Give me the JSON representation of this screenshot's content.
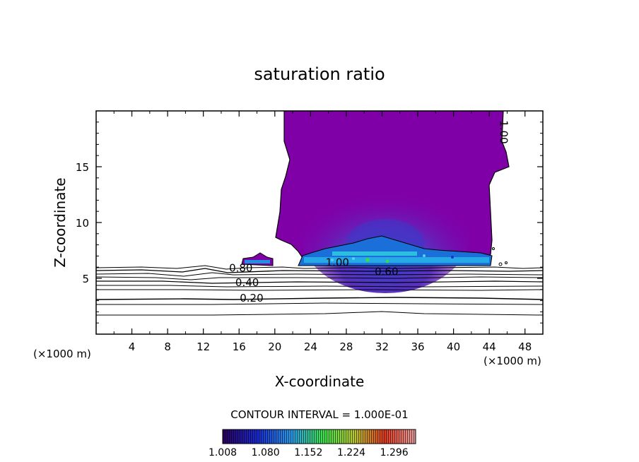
{
  "chart_data": {
    "type": "contour",
    "title": "saturation ratio",
    "xlabel": "X-coordinate",
    "ylabel": "Z-coordinate",
    "x_unit": "(×1000 m)",
    "y_unit": "(×1000 m)",
    "xlim": [
      0,
      50
    ],
    "ylim": [
      0,
      20
    ],
    "x_ticks": [
      4,
      8,
      12,
      16,
      20,
      24,
      28,
      32,
      36,
      40,
      44,
      48
    ],
    "y_ticks": [
      5,
      10,
      15
    ],
    "contour_interval": "CONTOUR INTERVAL = 1.000E-01",
    "contour_labels": [
      {
        "text": "0.80",
        "x": 16.2,
        "z": 5.6
      },
      {
        "text": "0.40",
        "x": 16.9,
        "z": 4.3
      },
      {
        "text": "0.20",
        "x": 17.4,
        "z": 2.9
      },
      {
        "text": "1.00",
        "x": 27.0,
        "z": 6.1
      },
      {
        "text": "0.60",
        "x": 32.5,
        "z": 5.3
      },
      {
        "text": "1.00",
        "x": 45.2,
        "z": 18.1
      }
    ],
    "colorbar": {
      "labels": [
        "1.008",
        "1.080",
        "1.152",
        "1.224",
        "1.296"
      ],
      "range": [
        1.008,
        1.332
      ],
      "colors": [
        "#2a0060",
        "#1a2ad0",
        "#2a9ce8",
        "#3ee050",
        "#c8d830",
        "#e84020",
        "#e8a0a0"
      ]
    },
    "regions": {
      "cloud_color": "#8000a8",
      "core_color": "#5a28c0",
      "base_color": "#1aa0e0"
    }
  }
}
